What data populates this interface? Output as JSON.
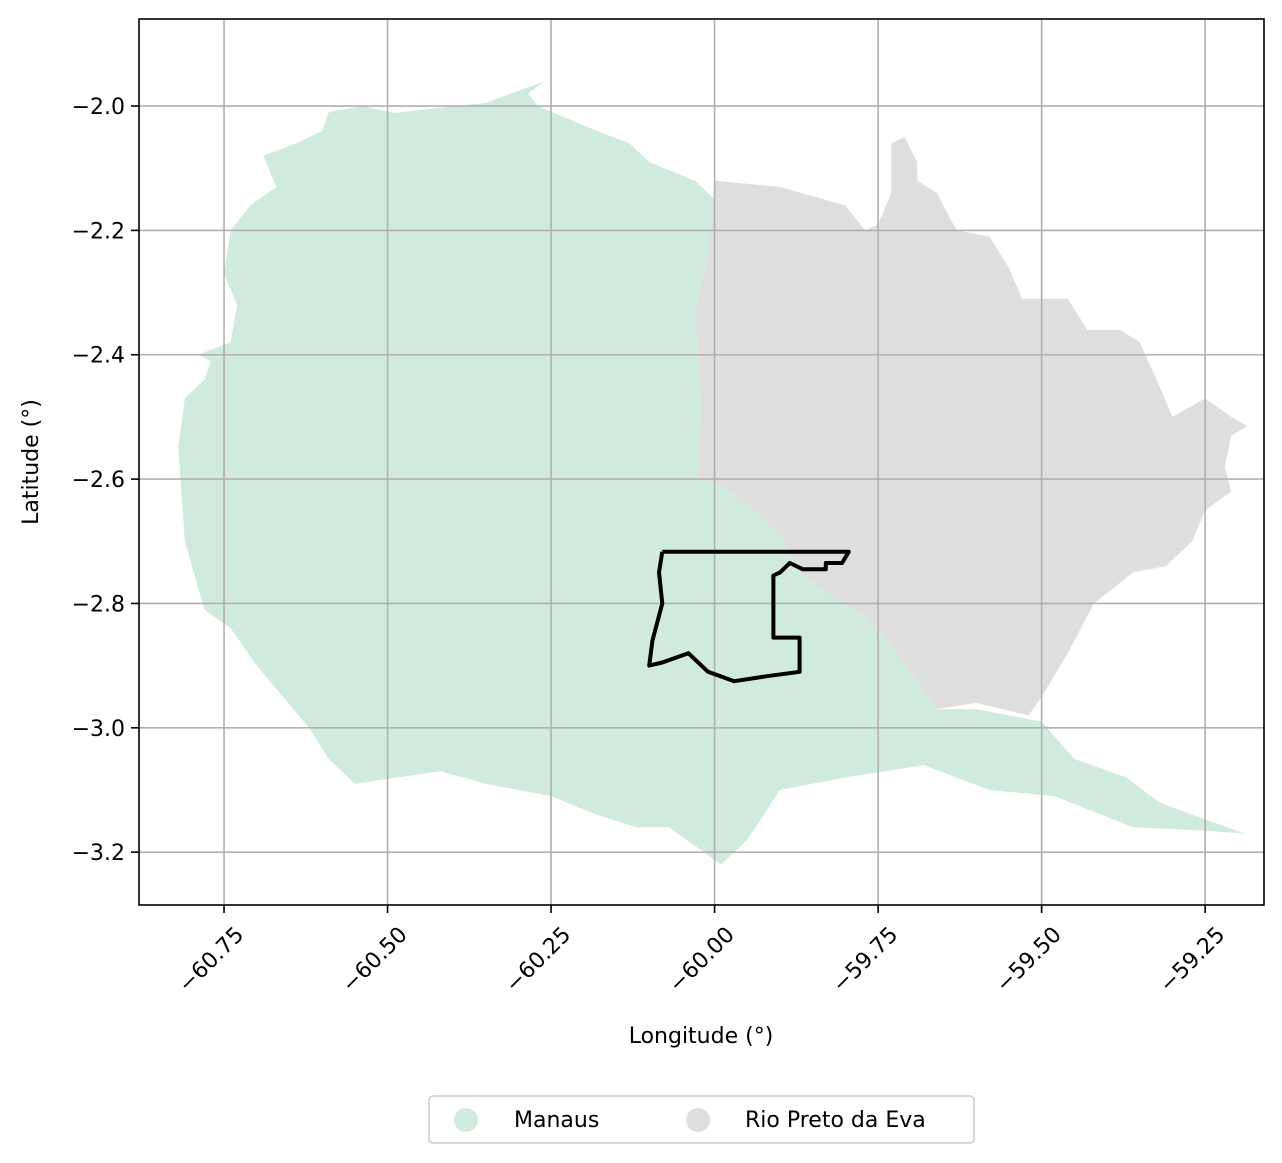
{
  "map": {
    "xlabel": "Longitude (°)",
    "ylabel": "Latitude (°)",
    "xlim": [
      -60.88,
      -59.16
    ],
    "ylim": [
      -3.285,
      -1.86
    ],
    "grid": true,
    "x_ticks": [
      {
        "value": -60.75,
        "label": "−60.75"
      },
      {
        "value": -60.5,
        "label": "−60.50"
      },
      {
        "value": -60.25,
        "label": "−60.25"
      },
      {
        "value": -60.0,
        "label": "−60.00"
      },
      {
        "value": -59.75,
        "label": "−59.75"
      },
      {
        "value": -59.5,
        "label": "−59.50"
      },
      {
        "value": -59.25,
        "label": "−59.25"
      }
    ],
    "y_ticks": [
      {
        "value": -2.0,
        "label": "−2.0"
      },
      {
        "value": -2.2,
        "label": "−2.2"
      },
      {
        "value": -2.4,
        "label": "−2.4"
      },
      {
        "value": -2.6,
        "label": "−2.6"
      },
      {
        "value": -2.8,
        "label": "−2.8"
      },
      {
        "value": -3.0,
        "label": "−3.0"
      },
      {
        "value": -3.2,
        "label": "−3.2"
      }
    ],
    "regions": [
      {
        "name": "Manaus",
        "color": "#d0ebde",
        "coords": [
          [
            -60.49,
            -2.011
          ],
          [
            -60.35,
            -1.995
          ],
          [
            -60.26,
            -1.96
          ],
          [
            -60.285,
            -1.98
          ],
          [
            -60.27,
            -2.0
          ],
          [
            -60.18,
            -2.04
          ],
          [
            -60.13,
            -2.06
          ],
          [
            -60.1,
            -2.09
          ],
          [
            -60.03,
            -2.12
          ],
          [
            -60.0,
            -2.15
          ],
          [
            -60.01,
            -2.24
          ],
          [
            -60.03,
            -2.33
          ],
          [
            -60.02,
            -2.48
          ],
          [
            -60.025,
            -2.6
          ],
          [
            -59.99,
            -2.61
          ],
          [
            -59.95,
            -2.64
          ],
          [
            -59.9,
            -2.69
          ],
          [
            -59.87,
            -2.75
          ],
          [
            -59.82,
            -2.79
          ],
          [
            -59.77,
            -2.82
          ],
          [
            -59.72,
            -2.88
          ],
          [
            -59.66,
            -2.97
          ],
          [
            -59.6,
            -2.97
          ],
          [
            -59.5,
            -2.99
          ],
          [
            -59.45,
            -3.05
          ],
          [
            -59.37,
            -3.08
          ],
          [
            -59.32,
            -3.12
          ],
          [
            -59.27,
            -3.14
          ],
          [
            -59.19,
            -3.17
          ],
          [
            -59.26,
            -3.165
          ],
          [
            -59.36,
            -3.16
          ],
          [
            -59.48,
            -3.11
          ],
          [
            -59.58,
            -3.1
          ],
          [
            -59.68,
            -3.06
          ],
          [
            -59.8,
            -3.08
          ],
          [
            -59.9,
            -3.1
          ],
          [
            -59.95,
            -3.18
          ],
          [
            -59.99,
            -3.22
          ],
          [
            -60.03,
            -3.19
          ],
          [
            -60.07,
            -3.16
          ],
          [
            -60.12,
            -3.16
          ],
          [
            -60.18,
            -3.14
          ],
          [
            -60.25,
            -3.11
          ],
          [
            -60.35,
            -3.09
          ],
          [
            -60.42,
            -3.07
          ],
          [
            -60.55,
            -3.09
          ],
          [
            -60.59,
            -3.05
          ],
          [
            -60.62,
            -3.0
          ],
          [
            -60.66,
            -2.95
          ],
          [
            -60.7,
            -2.9
          ],
          [
            -60.74,
            -2.84
          ],
          [
            -60.78,
            -2.81
          ],
          [
            -60.81,
            -2.7
          ],
          [
            -60.82,
            -2.55
          ],
          [
            -60.81,
            -2.47
          ],
          [
            -60.78,
            -2.44
          ],
          [
            -60.77,
            -2.41
          ],
          [
            -60.79,
            -2.4
          ],
          [
            -60.74,
            -2.38
          ],
          [
            -60.73,
            -2.32
          ],
          [
            -60.75,
            -2.27
          ],
          [
            -60.74,
            -2.2
          ],
          [
            -60.71,
            -2.16
          ],
          [
            -60.67,
            -2.13
          ],
          [
            -60.69,
            -2.08
          ],
          [
            -60.64,
            -2.06
          ],
          [
            -60.6,
            -2.04
          ],
          [
            -60.59,
            -2.01
          ],
          [
            -60.54,
            -2.0
          ]
        ]
      },
      {
        "name": "Rio Preto da Eva",
        "color": "#dedede",
        "coords": [
          [
            -60.0,
            -2.12
          ],
          [
            -59.9,
            -2.13
          ],
          [
            -59.8,
            -2.16
          ],
          [
            -59.77,
            -2.2
          ],
          [
            -59.75,
            -2.19
          ],
          [
            -59.73,
            -2.14
          ],
          [
            -59.73,
            -2.06
          ],
          [
            -59.71,
            -2.05
          ],
          [
            -59.69,
            -2.09
          ],
          [
            -59.69,
            -2.12
          ],
          [
            -59.66,
            -2.14
          ],
          [
            -59.64,
            -2.18
          ],
          [
            -59.63,
            -2.2
          ],
          [
            -59.58,
            -2.21
          ],
          [
            -59.55,
            -2.26
          ],
          [
            -59.53,
            -2.31
          ],
          [
            -59.46,
            -2.31
          ],
          [
            -59.43,
            -2.36
          ],
          [
            -59.38,
            -2.36
          ],
          [
            -59.35,
            -2.38
          ],
          [
            -59.32,
            -2.45
          ],
          [
            -59.3,
            -2.5
          ],
          [
            -59.25,
            -2.47
          ],
          [
            -59.21,
            -2.5
          ],
          [
            -59.185,
            -2.515
          ],
          [
            -59.21,
            -2.53
          ],
          [
            -59.22,
            -2.58
          ],
          [
            -59.21,
            -2.62
          ],
          [
            -59.25,
            -2.65
          ],
          [
            -59.27,
            -2.7
          ],
          [
            -59.31,
            -2.74
          ],
          [
            -59.36,
            -2.75
          ],
          [
            -59.42,
            -2.8
          ],
          [
            -59.46,
            -2.88
          ],
          [
            -59.5,
            -2.95
          ],
          [
            -59.52,
            -2.98
          ],
          [
            -59.6,
            -2.96
          ],
          [
            -59.66,
            -2.97
          ],
          [
            -59.72,
            -2.88
          ],
          [
            -59.77,
            -2.82
          ],
          [
            -59.82,
            -2.79
          ],
          [
            -59.87,
            -2.75
          ],
          [
            -59.9,
            -2.69
          ],
          [
            -59.95,
            -2.64
          ],
          [
            -59.99,
            -2.61
          ],
          [
            -60.025,
            -2.6
          ],
          [
            -60.02,
            -2.48
          ],
          [
            -60.03,
            -2.33
          ],
          [
            -60.01,
            -2.24
          ]
        ]
      }
    ],
    "outline": {
      "color": "#000000",
      "coords": [
        [
          -60.08,
          -2.717
        ],
        [
          -59.795,
          -2.717
        ],
        [
          -59.805,
          -2.735
        ],
        [
          -59.83,
          -2.735
        ],
        [
          -59.83,
          -2.745
        ],
        [
          -59.865,
          -2.745
        ],
        [
          -59.885,
          -2.735
        ],
        [
          -59.9,
          -2.75
        ],
        [
          -59.91,
          -2.755
        ],
        [
          -59.91,
          -2.855
        ],
        [
          -59.87,
          -2.855
        ],
        [
          -59.87,
          -2.91
        ],
        [
          -59.92,
          -2.917
        ],
        [
          -59.97,
          -2.925
        ],
        [
          -60.01,
          -2.91
        ],
        [
          -60.04,
          -2.88
        ],
        [
          -60.08,
          -2.895
        ],
        [
          -60.1,
          -2.9
        ],
        [
          -60.095,
          -2.86
        ],
        [
          -60.08,
          -2.8
        ],
        [
          -60.085,
          -2.75
        ]
      ]
    },
    "legend": {
      "placement": "bottom-center",
      "items": [
        {
          "label": "Manaus",
          "color": "#d0ebde"
        },
        {
          "label": "Rio Preto da Eva",
          "color": "#dedede"
        }
      ]
    }
  }
}
